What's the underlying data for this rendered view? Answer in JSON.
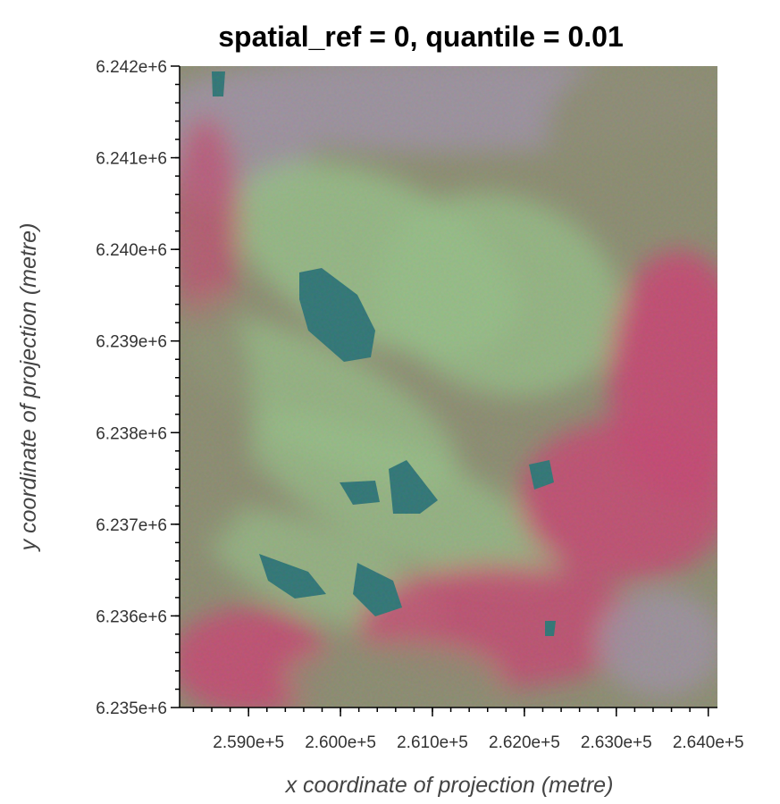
{
  "chart_data": {
    "type": "heatmap",
    "title": "spatial_ref = 0, quantile = 0.01",
    "xlabel": "x coordinate of projection (metre)",
    "ylabel": "y coordinate of projection (metre)",
    "xlim": [
      258250,
      264100
    ],
    "ylim": [
      6235000,
      6242000
    ],
    "x_ticks": [
      {
        "value": 259000,
        "label": "2.590e+5"
      },
      {
        "value": 260000,
        "label": "2.600e+5"
      },
      {
        "value": 261000,
        "label": "2.610e+5"
      },
      {
        "value": 262000,
        "label": "2.620e+5"
      },
      {
        "value": 263000,
        "label": "2.630e+5"
      },
      {
        "value": 264000,
        "label": "2.640e+5"
      }
    ],
    "y_ticks": [
      {
        "value": 6242000,
        "label": "6.242e+6"
      },
      {
        "value": 6241000,
        "label": "6.241e+6"
      },
      {
        "value": 6240000,
        "label": "6.240e+6"
      },
      {
        "value": 6239000,
        "label": "6.239e+6"
      },
      {
        "value": 6238000,
        "label": "6.238e+6"
      },
      {
        "value": 6237000,
        "label": "6.237e+6"
      },
      {
        "value": 6236000,
        "label": "6.236e+6"
      },
      {
        "value": 6235000,
        "label": "6.235e+6"
      }
    ],
    "image": "RGB false-color satellite composite",
    "colors": {
      "vegetation": "#9fd88a",
      "olive": "#8f9068",
      "urban": "#a898ac",
      "magenta": "#e0306a",
      "water": "#0a7070"
    }
  }
}
